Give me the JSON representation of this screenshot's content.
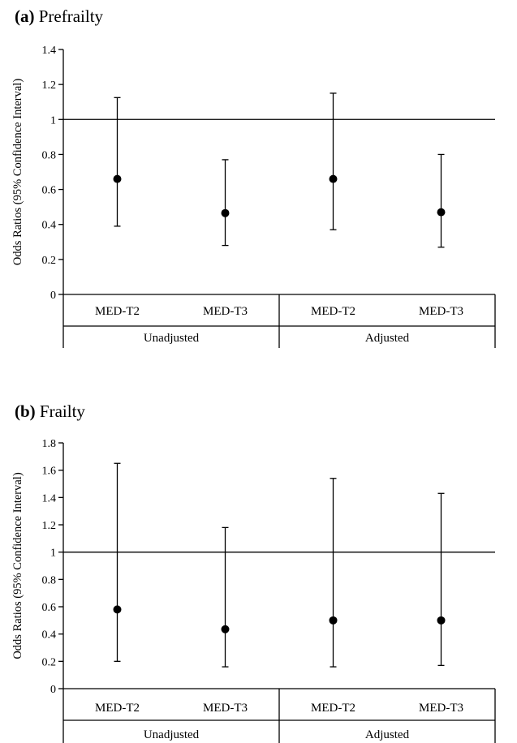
{
  "chart_data": [
    {
      "type": "scatter",
      "panel_letter": "(a)",
      "title": "Prefrailty",
      "ylabel": "Odds Ratios (95% Confidence Interval)",
      "ylim": [
        0,
        1.4
      ],
      "yticks": [
        0,
        0.2,
        0.4,
        0.6,
        0.8,
        1,
        1.2,
        1.4
      ],
      "ytick_labels": [
        "0",
        "0.2",
        "0.4",
        "0.6",
        "0.8",
        "1",
        "1.2",
        "1.4"
      ],
      "reference_line": 1,
      "categories": [
        "MED-T2",
        "MED-T3",
        "MED-T2",
        "MED-T3"
      ],
      "groups": [
        {
          "label": "Unadjusted",
          "span": [
            0,
            1
          ]
        },
        {
          "label": "Adjusted",
          "span": [
            2,
            3
          ]
        }
      ],
      "series": [
        {
          "estimate": [
            0.66,
            0.465,
            0.66,
            0.47
          ],
          "lower": [
            0.39,
            0.28,
            0.37,
            0.27
          ],
          "upper": [
            1.125,
            0.77,
            1.15,
            0.8
          ]
        }
      ]
    },
    {
      "type": "scatter",
      "panel_letter": "(b)",
      "title": "Frailty",
      "ylabel": "Odds Ratios (95% Confidence Interval)",
      "ylim": [
        0,
        1.8
      ],
      "yticks": [
        0,
        0.2,
        0.4,
        0.6,
        0.8,
        1,
        1.2,
        1.4,
        1.6,
        1.8
      ],
      "ytick_labels": [
        "0",
        "0.2",
        "0.4",
        "0.6",
        "0.8",
        "1",
        "1.2",
        "1.4",
        "1.6",
        "1.8"
      ],
      "reference_line": 1,
      "categories": [
        "MED-T2",
        "MED-T3",
        "MED-T2",
        "MED-T3"
      ],
      "groups": [
        {
          "label": "Unadjusted",
          "span": [
            0,
            1
          ]
        },
        {
          "label": "Adjusted",
          "span": [
            2,
            3
          ]
        }
      ],
      "series": [
        {
          "estimate": [
            0.58,
            0.435,
            0.5,
            0.5
          ],
          "lower": [
            0.2,
            0.16,
            0.16,
            0.17
          ],
          "upper": [
            1.65,
            1.18,
            1.54,
            1.43
          ]
        }
      ]
    }
  ]
}
